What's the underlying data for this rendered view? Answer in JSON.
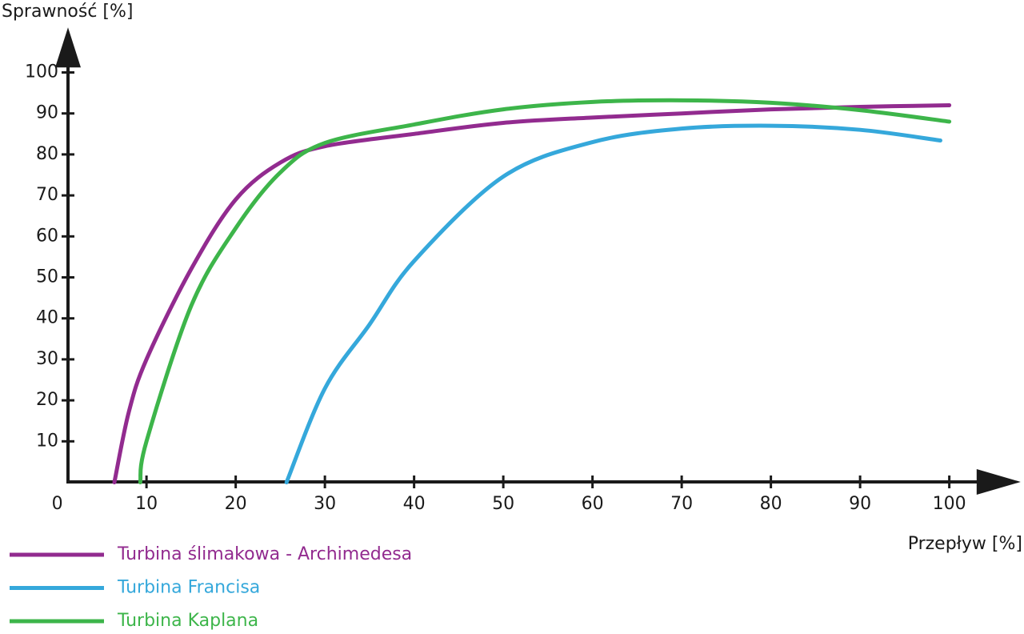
{
  "chart_data": {
    "type": "line",
    "y_label": "Sprawność [%]",
    "x_label": "Przepływ [%]",
    "xlim": [
      1.2,
      108
    ],
    "ylim": [
      0.1,
      111
    ],
    "xticks": [
      0,
      10,
      20,
      30,
      40,
      50,
      60,
      70,
      80,
      90,
      100
    ],
    "yticks": [
      10,
      20,
      30,
      40,
      50,
      60,
      70,
      80,
      90,
      100
    ],
    "series": [
      {
        "name": "Turbina ślimakowa - Archimedesa",
        "color": "#922b8f",
        "x": [
          6.4,
          8,
          10,
          15,
          20,
          25,
          30,
          40,
          50,
          60,
          70,
          80,
          90,
          100
        ],
        "values": [
          0,
          17,
          30,
          52,
          69,
          78,
          82,
          85,
          87.7,
          89,
          90,
          91,
          91.6,
          92
        ]
      },
      {
        "name": "Turbina Francisa",
        "color": "#35a8db",
        "x": [
          25.7,
          30,
          35,
          40,
          50,
          60,
          70,
          80,
          90,
          99
        ],
        "values": [
          0,
          22.9,
          38.5,
          54,
          74.6,
          83,
          86.3,
          87,
          86,
          83.4
        ]
      },
      {
        "name": "Turbina Kaplana",
        "color": "#3db54a",
        "x": [
          9.3,
          10,
          15,
          20,
          25,
          30,
          40,
          50,
          60,
          70,
          80,
          90,
          100
        ],
        "values": [
          0,
          10,
          43,
          62,
          75.6,
          82.8,
          87.3,
          91,
          92.8,
          93.2,
          92.6,
          90.8,
          88
        ]
      }
    ]
  }
}
